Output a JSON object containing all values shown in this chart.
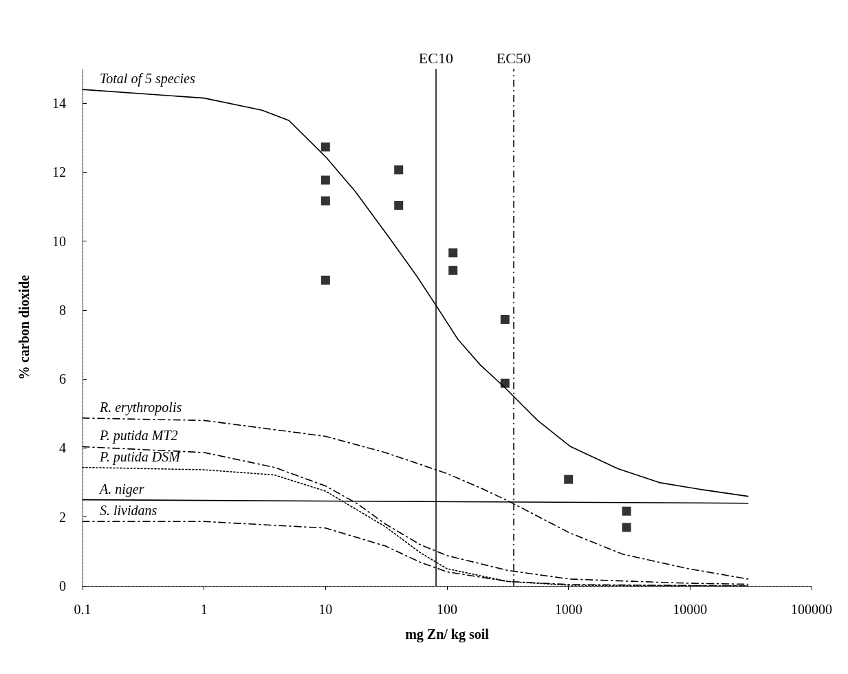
{
  "chart_data": {
    "type": "line",
    "xlabel": "mg Zn/ kg soil",
    "ylabel": "% carbon dioxide",
    "log": "x",
    "grid": false,
    "legend": false,
    "xlim": [
      0.1,
      100000
    ],
    "xticks": [
      0.1,
      1,
      10,
      100,
      1000,
      10000,
      100000
    ],
    "ylim": [
      0,
      15
    ],
    "yticks": [
      0,
      2,
      4,
      6,
      8,
      10,
      12,
      14
    ],
    "ref_lines": [
      {
        "axis": "x",
        "value": 81,
        "label": "EC10",
        "line_style": "solid",
        "color": "#000000"
      },
      {
        "axis": "x",
        "value": 353,
        "label": "EC50",
        "line_style": "dashed",
        "color": "#000000"
      }
    ],
    "series": [
      {
        "name": "Total of 5 species",
        "color": "#000000",
        "line_style": "solid",
        "marker": "none",
        "x": [
          0.1,
          1,
          3,
          5,
          10,
          17.5,
          33.5,
          56,
          79,
          123,
          189,
          290,
          557,
          1030,
          2550,
          5570,
          12200,
          30000
        ],
        "values": [
          14.4,
          14.15,
          13.8,
          13.5,
          12.45,
          11.45,
          10.1,
          9.0,
          8.2,
          7.15,
          6.4,
          5.8,
          4.8,
          4.05,
          3.4,
          3.0,
          2.8,
          2.6
        ]
      },
      {
        "name": "R. erythropolis",
        "color": "#000000",
        "line_style": "dashed",
        "marker": "none",
        "x": [
          0.1,
          1,
          10,
          31,
          100,
          189,
          317,
          1020,
          2800,
          9400,
          30000
        ],
        "values": [
          4.87,
          4.8,
          4.34,
          3.87,
          3.26,
          2.84,
          2.47,
          1.54,
          0.92,
          0.51,
          0.2
        ]
      },
      {
        "name": "P. putida MT2",
        "color": "#000000",
        "line_style": "dashed",
        "marker": "none",
        "x": [
          0.1,
          1,
          3.8,
          10,
          18,
          31,
          60,
          100,
          317,
          1020,
          9400,
          30000
        ],
        "values": [
          4.04,
          3.87,
          3.44,
          2.9,
          2.4,
          1.8,
          1.2,
          0.88,
          0.45,
          0.2,
          0.08,
          0.05
        ]
      },
      {
        "name": "P. putida DSM",
        "color": "#000000",
        "line_style": "dotted",
        "marker": "none",
        "x": [
          0.1,
          1,
          3.8,
          10,
          31,
          60,
          100,
          317,
          1020,
          30000
        ],
        "values": [
          3.44,
          3.37,
          3.22,
          2.75,
          1.72,
          0.97,
          0.5,
          0.13,
          0.02,
          0
        ]
      },
      {
        "name": "A. niger",
        "color": "#000000",
        "line_style": "solid",
        "marker": "none",
        "x": [
          0.1,
          30000
        ],
        "values": [
          2.5,
          2.4
        ]
      },
      {
        "name": "S. lividans",
        "color": "#000000",
        "line_style": "dashed",
        "marker": "none",
        "x": [
          0.1,
          1,
          10,
          31,
          60,
          100,
          317,
          1020,
          30000
        ],
        "values": [
          1.87,
          1.87,
          1.68,
          1.16,
          0.69,
          0.41,
          0.13,
          0.04,
          0
        ]
      },
      {
        "type": "scatter",
        "color": "#000000",
        "marker": "square",
        "x": [
          10,
          10,
          10,
          10,
          40,
          40,
          112,
          112,
          300,
          300,
          1000,
          3000,
          3000
        ],
        "values": [
          12.73,
          11.77,
          11.17,
          8.87,
          12.07,
          11.04,
          9.66,
          9.15,
          7.73,
          5.88,
          3.09,
          2.17,
          1.7
        ]
      }
    ]
  }
}
